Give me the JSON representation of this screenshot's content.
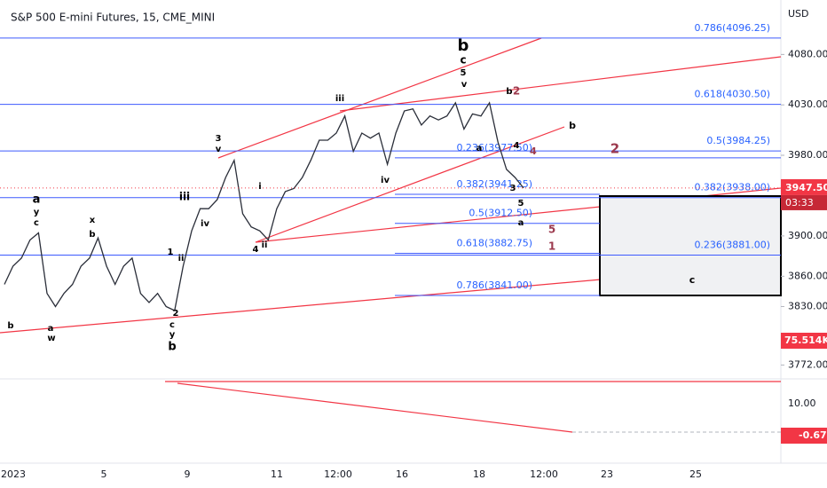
{
  "chart_data": {
    "type": "line",
    "title": "S&P 500 E-mini Futures, 15, CME_MINI",
    "currency": "USD",
    "series": [
      {
        "color": "#2a2e39",
        "values": [
          3852,
          3870,
          3878,
          3896,
          3903,
          3843,
          3830,
          3843,
          3852,
          3870,
          3878,
          3898,
          3870,
          3852,
          3870,
          3878,
          3843,
          3834,
          3843,
          3830,
          3826,
          3870,
          3905,
          3927,
          3927,
          3936,
          3958,
          3975,
          3922,
          3909,
          3905,
          3896,
          3927,
          3944,
          3947,
          3958,
          3975,
          3995,
          3995,
          4002,
          4019,
          3984,
          4002,
          3997,
          4002,
          3971,
          4002,
          4024,
          4026,
          4010,
          4019,
          4015,
          4019,
          4032,
          4006,
          4021,
          4019,
          4032,
          3993,
          3966,
          3958,
          3947.5
        ]
      }
    ],
    "ylim": [
      3760,
      4134
    ],
    "yticks": [
      {
        "value": 4080,
        "label": "4080.00"
      },
      {
        "value": 4030,
        "label": "4030.00"
      },
      {
        "value": 3980,
        "label": "3980.00"
      },
      {
        "value": 3900,
        "label": "3900.00"
      },
      {
        "value": 3860,
        "label": "3860.00"
      },
      {
        "value": 3830,
        "label": "3830.00"
      },
      {
        "value": 3772,
        "label": "3772.00"
      }
    ],
    "x_labels": [
      "2023",
      "5",
      "9",
      "11",
      "12:00",
      "16",
      "18",
      "12:00",
      "23",
      "25"
    ],
    "fib_outer": [
      {
        "label": "0.786(4096.25)",
        "value": 4096.25
      },
      {
        "label": "0.618(4030.50)",
        "value": 4030.5
      },
      {
        "label": "0.5(3984.25)",
        "value": 3984.25
      },
      {
        "label": "0.382(3938.00)",
        "value": 3938
      },
      {
        "label": "0.236(3881.00)",
        "value": 3881
      }
    ],
    "fib_inner": [
      {
        "label": "0.236(3977.50)",
        "value": 3977.5
      },
      {
        "label": "0.382(3941.25)",
        "value": 3941.25
      },
      {
        "label": "0.5(3912.50)",
        "value": 3912.5
      },
      {
        "label": "0.618(3882.75)",
        "value": 3882.75
      },
      {
        "label": "0.786(3841.00)",
        "value": 3841
      }
    ],
    "annotations": [
      "b",
      "c",
      "5",
      "v",
      "b",
      "2",
      "iii",
      "3",
      "v",
      "i",
      "iii",
      "iv",
      "ii",
      "4",
      "a",
      "y",
      "c",
      "x",
      "b",
      "1",
      "ii",
      "2",
      "c",
      "y",
      "b",
      "b",
      "a",
      "w",
      "iv",
      "a",
      "4",
      "4",
      "2",
      "b",
      "3",
      "5",
      "a",
      "5",
      "1",
      "c"
    ],
    "price_tag": {
      "value": 3947.5,
      "label": "3947.50"
    },
    "countdown": "03:33",
    "volume_label": "75.514K",
    "osc_labels": [
      "10.00",
      "-0.67"
    ]
  }
}
